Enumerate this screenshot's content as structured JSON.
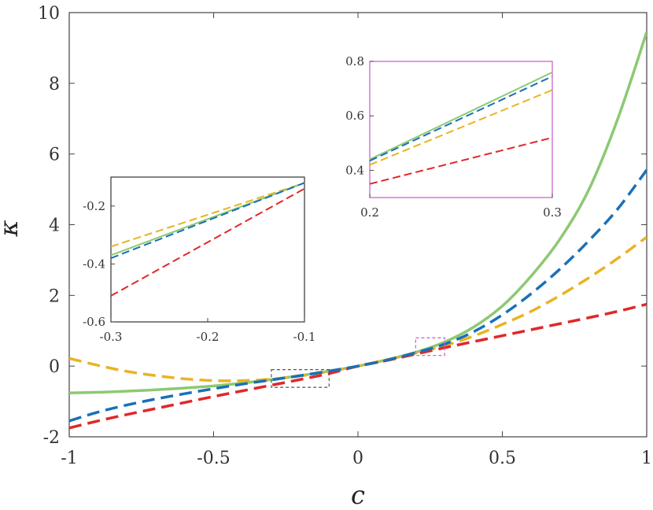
{
  "chart_data": {
    "type": "line",
    "xlabel": "c",
    "ylabel": "κ",
    "xlim": [
      -1,
      1
    ],
    "ylim": [
      -2,
      10
    ],
    "xticks": [
      "-1",
      "-0.5",
      "0",
      "0.5",
      "1"
    ],
    "yticks": [
      "-2",
      "0",
      "2",
      "4",
      "6",
      "8",
      "10"
    ],
    "grid": false,
    "series": [
      {
        "name": "green",
        "color": "#8dc972",
        "dash": "solid",
        "x": [
          -1,
          -0.9,
          -0.8,
          -0.7,
          -0.6,
          -0.5,
          -0.4,
          -0.3,
          -0.2,
          -0.1,
          0,
          0.1,
          0.2,
          0.3,
          0.4,
          0.5,
          0.6,
          0.7,
          0.8,
          0.9,
          1
        ],
        "y": [
          -0.76,
          -0.74,
          -0.71,
          -0.67,
          -0.62,
          -0.56,
          -0.48,
          -0.38,
          -0.27,
          -0.14,
          0.0,
          0.18,
          0.39,
          0.68,
          1.1,
          1.7,
          2.55,
          3.6,
          5.0,
          7.0,
          9.45
        ]
      },
      {
        "name": "blue",
        "color": "#1a70b8",
        "dash": "dashed",
        "x": [
          -1,
          -0.9,
          -0.8,
          -0.7,
          -0.6,
          -0.5,
          -0.4,
          -0.3,
          -0.2,
          -0.1,
          0,
          0.1,
          0.2,
          0.3,
          0.4,
          0.5,
          0.6,
          0.7,
          0.8,
          0.9,
          1
        ],
        "y": [
          -1.55,
          -1.3,
          -1.1,
          -0.93,
          -0.78,
          -0.64,
          -0.51,
          -0.39,
          -0.27,
          -0.14,
          0.0,
          0.17,
          0.38,
          0.62,
          0.97,
          1.45,
          2.05,
          2.75,
          3.55,
          4.45,
          5.55
        ]
      },
      {
        "name": "yellow",
        "color": "#e8b423",
        "dash": "dashed",
        "x": [
          -1,
          -0.9,
          -0.8,
          -0.7,
          -0.6,
          -0.5,
          -0.4,
          -0.3,
          -0.2,
          -0.1,
          0,
          0.1,
          0.2,
          0.3,
          0.4,
          0.5,
          0.6,
          0.7,
          0.8,
          0.9,
          1
        ],
        "y": [
          0.22,
          0.02,
          -0.15,
          -0.27,
          -0.36,
          -0.41,
          -0.41,
          -0.37,
          -0.28,
          -0.15,
          0.0,
          0.18,
          0.37,
          0.58,
          0.85,
          1.18,
          1.55,
          2.0,
          2.5,
          3.05,
          3.65
        ]
      },
      {
        "name": "red",
        "color": "#e0282a",
        "dash": "dashed",
        "x": [
          -1,
          -0.9,
          -0.8,
          -0.7,
          -0.6,
          -0.5,
          -0.4,
          -0.3,
          -0.2,
          -0.1,
          0,
          0.1,
          0.2,
          0.3,
          0.4,
          0.5,
          0.6,
          0.7,
          0.8,
          0.9,
          1
        ],
        "y": [
          -1.75,
          -1.55,
          -1.37,
          -1.2,
          -1.03,
          -0.86,
          -0.7,
          -0.54,
          -0.38,
          -0.21,
          0.0,
          0.16,
          0.34,
          0.52,
          0.69,
          0.86,
          1.03,
          1.2,
          1.37,
          1.55,
          1.75
        ]
      }
    ],
    "insets": [
      {
        "name": "inset-left",
        "color": "#333333",
        "xlim": [
          -0.3,
          -0.1
        ],
        "ylim": [
          -0.6,
          -0.1
        ],
        "xticks": [
          "-0.3",
          "-0.2",
          "-0.1"
        ],
        "yticks": [
          "-0.2",
          "-0.4",
          "-0.6"
        ],
        "ytick_values": [
          -0.2,
          -0.4,
          -0.6
        ],
        "xtick_values": [
          -0.3,
          -0.2,
          -0.1
        ],
        "series": [
          {
            "name": "yellow",
            "x": [
              -0.3,
              -0.1
            ],
            "y": [
              -0.34,
              -0.12
            ]
          },
          {
            "name": "green",
            "x": [
              -0.3,
              -0.1
            ],
            "y": [
              -0.37,
              -0.12
            ]
          },
          {
            "name": "blue",
            "x": [
              -0.3,
              -0.1
            ],
            "y": [
              -0.38,
              -0.12
            ]
          },
          {
            "name": "red",
            "x": [
              -0.3,
              -0.1
            ],
            "y": [
              -0.51,
              -0.14
            ]
          }
        ]
      },
      {
        "name": "inset-right",
        "color": "#c45ac4",
        "xlim": [
          0.2,
          0.3
        ],
        "ylim": [
          0.3,
          0.8
        ],
        "xticks": [
          "0.2",
          "0.3"
        ],
        "yticks": [
          "0.8",
          "0.6",
          "0.4"
        ],
        "ytick_values": [
          0.8,
          0.6,
          0.4
        ],
        "xtick_values": [
          0.2,
          0.3
        ],
        "series": [
          {
            "name": "green",
            "x": [
              0.2,
              0.3
            ],
            "y": [
              0.44,
              0.76
            ]
          },
          {
            "name": "blue",
            "x": [
              0.2,
              0.3
            ],
            "y": [
              0.435,
              0.745
            ]
          },
          {
            "name": "yellow",
            "x": [
              0.2,
              0.3
            ],
            "y": [
              0.42,
              0.695
            ]
          },
          {
            "name": "red",
            "x": [
              0.2,
              0.3
            ],
            "y": [
              0.35,
              0.52
            ]
          }
        ]
      }
    ],
    "zoom_boxes": [
      {
        "name": "zoom-box-left",
        "color": "#555555",
        "xlim": [
          -0.3,
          -0.1
        ],
        "ylim": [
          -0.6,
          -0.1
        ]
      },
      {
        "name": "zoom-box-right",
        "color": "#c45ac4",
        "xlim": [
          0.2,
          0.3
        ],
        "ylim": [
          0.3,
          0.8
        ]
      }
    ]
  }
}
